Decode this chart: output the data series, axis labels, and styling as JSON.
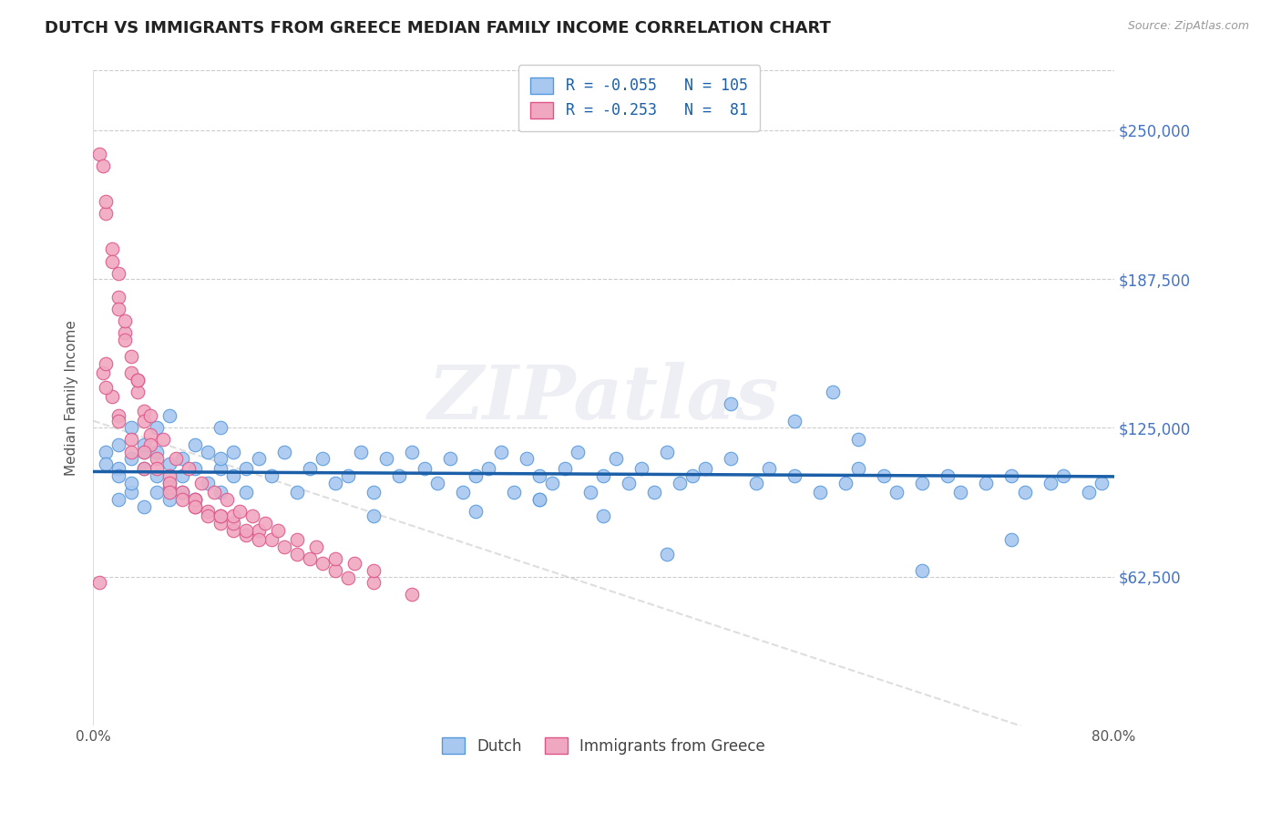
{
  "title": "DUTCH VS IMMIGRANTS FROM GREECE MEDIAN FAMILY INCOME CORRELATION CHART",
  "source": "Source: ZipAtlas.com",
  "ylabel": "Median Family Income",
  "yticks": [
    0,
    62500,
    125000,
    187500,
    250000
  ],
  "ytick_labels": [
    "",
    "$62,500",
    "$125,000",
    "$187,500",
    "$250,000"
  ],
  "xlim": [
    0.0,
    0.8
  ],
  "ylim": [
    0,
    275000
  ],
  "dutch_color": "#a8c8f0",
  "dutch_edge_color": "#5599dd",
  "greek_color": "#f0a8c0",
  "greek_edge_color": "#dd5588",
  "dutch_line_color": "#1a5fa8",
  "greek_line_color": "#c8c8c8",
  "dutch_R": -0.055,
  "dutch_N": 105,
  "greek_R": -0.253,
  "greek_N": 81,
  "legend_color": "#1a5fa8",
  "watermark": "ZIPatlas",
  "dutch_x": [
    0.01,
    0.01,
    0.02,
    0.02,
    0.02,
    0.02,
    0.03,
    0.03,
    0.03,
    0.03,
    0.04,
    0.04,
    0.04,
    0.04,
    0.05,
    0.05,
    0.05,
    0.05,
    0.06,
    0.06,
    0.06,
    0.06,
    0.07,
    0.07,
    0.07,
    0.08,
    0.08,
    0.08,
    0.09,
    0.09,
    0.1,
    0.1,
    0.1,
    0.1,
    0.11,
    0.11,
    0.12,
    0.12,
    0.13,
    0.14,
    0.15,
    0.16,
    0.17,
    0.18,
    0.19,
    0.2,
    0.21,
    0.22,
    0.23,
    0.24,
    0.25,
    0.26,
    0.27,
    0.28,
    0.29,
    0.3,
    0.31,
    0.32,
    0.33,
    0.34,
    0.35,
    0.36,
    0.37,
    0.38,
    0.39,
    0.4,
    0.41,
    0.42,
    0.43,
    0.44,
    0.45,
    0.46,
    0.47,
    0.48,
    0.5,
    0.52,
    0.53,
    0.55,
    0.57,
    0.59,
    0.6,
    0.62,
    0.63,
    0.65,
    0.67,
    0.68,
    0.7,
    0.72,
    0.73,
    0.75,
    0.76,
    0.78,
    0.79,
    0.5,
    0.55,
    0.6,
    0.65,
    0.3,
    0.35,
    0.4,
    0.45,
    0.22,
    0.35,
    0.58,
    0.72
  ],
  "dutch_y": [
    115000,
    110000,
    108000,
    118000,
    95000,
    105000,
    112000,
    98000,
    125000,
    102000,
    115000,
    92000,
    108000,
    118000,
    105000,
    98000,
    115000,
    125000,
    110000,
    95000,
    102000,
    130000,
    112000,
    98000,
    105000,
    108000,
    118000,
    95000,
    115000,
    102000,
    98000,
    108000,
    112000,
    125000,
    105000,
    115000,
    98000,
    108000,
    112000,
    105000,
    115000,
    98000,
    108000,
    112000,
    102000,
    105000,
    115000,
    98000,
    112000,
    105000,
    115000,
    108000,
    102000,
    112000,
    98000,
    105000,
    108000,
    115000,
    98000,
    112000,
    105000,
    102000,
    108000,
    115000,
    98000,
    105000,
    112000,
    102000,
    108000,
    98000,
    115000,
    102000,
    105000,
    108000,
    112000,
    102000,
    108000,
    105000,
    98000,
    102000,
    108000,
    105000,
    98000,
    102000,
    105000,
    98000,
    102000,
    105000,
    98000,
    102000,
    105000,
    98000,
    102000,
    135000,
    128000,
    120000,
    65000,
    90000,
    95000,
    88000,
    72000,
    88000,
    95000,
    140000,
    78000
  ],
  "greek_x": [
    0.005,
    0.008,
    0.01,
    0.01,
    0.015,
    0.015,
    0.02,
    0.02,
    0.02,
    0.025,
    0.025,
    0.03,
    0.03,
    0.035,
    0.035,
    0.04,
    0.04,
    0.045,
    0.045,
    0.05,
    0.05,
    0.06,
    0.06,
    0.07,
    0.07,
    0.08,
    0.08,
    0.09,
    0.09,
    0.1,
    0.1,
    0.11,
    0.11,
    0.12,
    0.13,
    0.14,
    0.15,
    0.16,
    0.17,
    0.18,
    0.19,
    0.2,
    0.22,
    0.25,
    0.11,
    0.13,
    0.08,
    0.06,
    0.04,
    0.03,
    0.02,
    0.015,
    0.01,
    0.008,
    0.005,
    0.025,
    0.035,
    0.045,
    0.055,
    0.065,
    0.075,
    0.085,
    0.095,
    0.105,
    0.115,
    0.125,
    0.135,
    0.145,
    0.16,
    0.175,
    0.19,
    0.205,
    0.22,
    0.01,
    0.02,
    0.03,
    0.04,
    0.06,
    0.08,
    0.1,
    0.12
  ],
  "greek_y": [
    240000,
    235000,
    215000,
    220000,
    200000,
    195000,
    180000,
    190000,
    175000,
    165000,
    170000,
    155000,
    148000,
    140000,
    145000,
    132000,
    128000,
    122000,
    118000,
    112000,
    108000,
    105000,
    100000,
    98000,
    95000,
    92000,
    95000,
    90000,
    88000,
    85000,
    88000,
    82000,
    85000,
    80000,
    82000,
    78000,
    75000,
    72000,
    70000,
    68000,
    65000,
    62000,
    60000,
    55000,
    88000,
    78000,
    95000,
    102000,
    115000,
    120000,
    130000,
    138000,
    142000,
    148000,
    60000,
    162000,
    145000,
    130000,
    120000,
    112000,
    108000,
    102000,
    98000,
    95000,
    90000,
    88000,
    85000,
    82000,
    78000,
    75000,
    70000,
    68000,
    65000,
    152000,
    128000,
    115000,
    108000,
    98000,
    92000,
    88000,
    82000
  ]
}
